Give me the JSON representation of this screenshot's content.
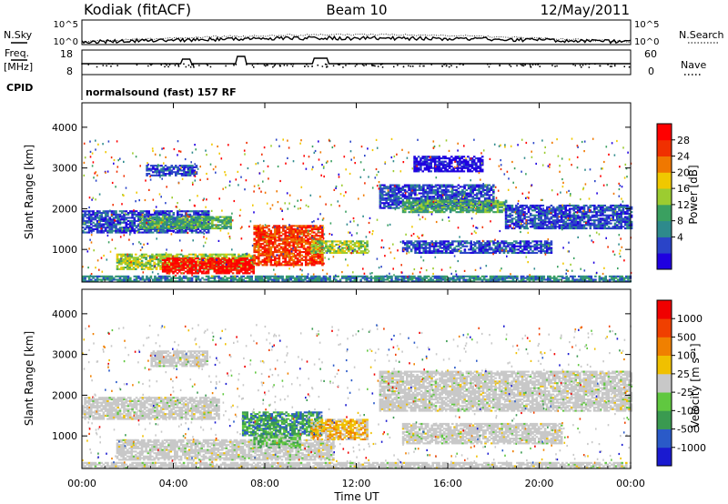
{
  "header": {
    "station": "Kodiak (fitACF)",
    "beam": "Beam 10",
    "date": "12/May/2011"
  },
  "top_panels": {
    "nsky_label": "N.Sky",
    "nsearch_label": "N.Search",
    "count_ticks": [
      "10^5",
      "10^0"
    ],
    "freq_label": "Freq.",
    "freq_unit": "[MHz]",
    "freq_ticks": [
      "18",
      "8"
    ],
    "nave_label": "Nave",
    "nave_ticks": [
      "60",
      "0"
    ],
    "cpid_label": "CPID",
    "cpid_value": "normalsound (fast) 157 RF"
  },
  "chart_data": [
    {
      "type": "heatmap",
      "name": "Power",
      "ylabel": "Slant Range [km]",
      "xlabel": "Time UT",
      "x_ticks": [
        "00:00",
        "04:00",
        "08:00",
        "12:00",
        "16:00",
        "20:00",
        "00:00"
      ],
      "xlim_hours": [
        0,
        24
      ],
      "y_ticks": [
        1000,
        2000,
        3000,
        4000
      ],
      "ylim": [
        200,
        4600
      ],
      "colorbar": {
        "label": "Power [dB]",
        "ticks": [
          "28",
          "24",
          "20",
          "16",
          "12",
          "8",
          "4"
        ],
        "colors": [
          "#1f00e0",
          "#2a44c8",
          "#2e8a8c",
          "#3aa060",
          "#9ccc30",
          "#f0c800",
          "#f07800",
          "#f03000",
          "#ff0000"
        ]
      },
      "regions": [
        {
          "t": [
            0,
            24
          ],
          "r": [
            200,
            330
          ],
          "level": 2
        },
        {
          "t": [
            0,
            5.5
          ],
          "r": [
            1400,
            1950
          ],
          "level": 1
        },
        {
          "t": [
            2.5,
            6.5
          ],
          "r": [
            1500,
            1800
          ],
          "level": 3
        },
        {
          "t": [
            1.5,
            7.5
          ],
          "r": [
            500,
            900
          ],
          "level": 4
        },
        {
          "t": [
            3.5,
            7.5
          ],
          "r": [
            400,
            800
          ],
          "level": 8
        },
        {
          "t": [
            7.5,
            10.5
          ],
          "r": [
            600,
            1600
          ],
          "level": 7
        },
        {
          "t": [
            10,
            12.5
          ],
          "r": [
            900,
            1200
          ],
          "level": 4
        },
        {
          "t": [
            2.8,
            5
          ],
          "r": [
            2800,
            3050
          ],
          "level": 1
        },
        {
          "t": [
            13,
            18
          ],
          "r": [
            2000,
            2600
          ],
          "level": 1
        },
        {
          "t": [
            14,
            18.5
          ],
          "r": [
            1900,
            2200
          ],
          "level": 3
        },
        {
          "t": [
            18.5,
            24
          ],
          "r": [
            1500,
            2100
          ],
          "level": 1
        },
        {
          "t": [
            14,
            20.5
          ],
          "r": [
            900,
            1200
          ],
          "level": 1
        },
        {
          "t": [
            14.5,
            17.5
          ],
          "r": [
            2900,
            3300
          ],
          "level": 0
        }
      ]
    },
    {
      "type": "heatmap",
      "name": "Velocity",
      "ylabel": "Slant Range [km]",
      "xlabel": "Time UT",
      "x_ticks": [
        "00:00",
        "04:00",
        "08:00",
        "12:00",
        "16:00",
        "20:00",
        "00:00"
      ],
      "xlim_hours": [
        0,
        24
      ],
      "y_ticks": [
        1000,
        2000,
        3000,
        4000
      ],
      "ylim": [
        200,
        4600
      ],
      "colorbar": {
        "label": "Velocity [m s⁻¹]",
        "ticks": [
          "1000",
          "500",
          "100",
          "25",
          "-25",
          "-100",
          "-500",
          "-1000"
        ],
        "colors": [
          "#1a1ad0",
          "#2a5ac8",
          "#3a9a50",
          "#60c840",
          "#c8c8c8",
          "#f0c000",
          "#f08000",
          "#f04000",
          "#f00000"
        ]
      },
      "regions": [
        {
          "t": [
            0,
            24
          ],
          "r": [
            200,
            330
          ],
          "level": 4
        },
        {
          "t": [
            0,
            6
          ],
          "r": [
            1400,
            1950
          ],
          "level": 4
        },
        {
          "t": [
            1.5,
            11
          ],
          "r": [
            400,
            900
          ],
          "level": 4
        },
        {
          "t": [
            7,
            10.5
          ],
          "r": [
            1000,
            1600
          ],
          "level": 2
        },
        {
          "t": [
            7.5,
            9.5
          ],
          "r": [
            700,
            1000
          ],
          "level": 3
        },
        {
          "t": [
            10,
            12.5
          ],
          "r": [
            900,
            1400
          ],
          "level": 5
        },
        {
          "t": [
            3,
            5.5
          ],
          "r": [
            2700,
            3100
          ],
          "level": 4
        },
        {
          "t": [
            13,
            24
          ],
          "r": [
            1600,
            2600
          ],
          "level": 4
        },
        {
          "t": [
            14,
            21
          ],
          "r": [
            800,
            1300
          ],
          "level": 4
        }
      ]
    }
  ]
}
